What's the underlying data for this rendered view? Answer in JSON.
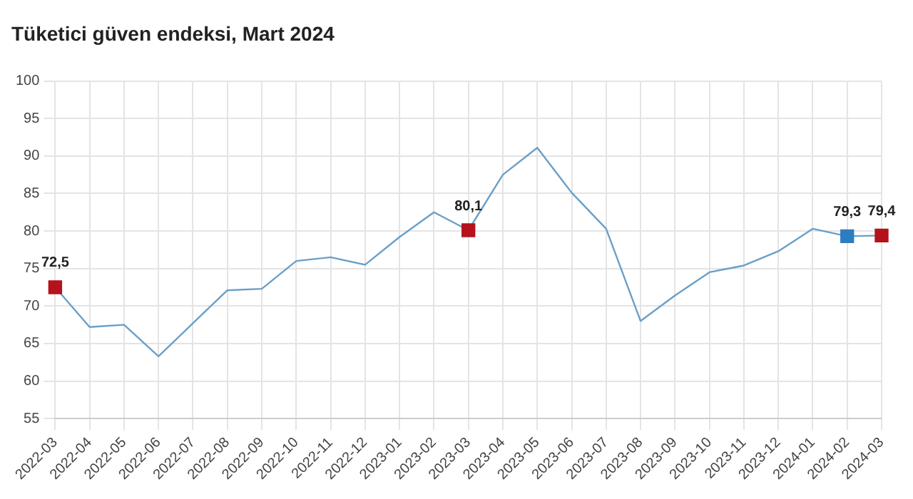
{
  "chart_data": {
    "type": "line",
    "title": "Tüketici güven endeksi, Mart 2024",
    "x": [
      "2022-03",
      "2022-04",
      "2022-05",
      "2022-06",
      "2022-07",
      "2022-08",
      "2022-09",
      "2022-10",
      "2022-11",
      "2022-12",
      "2023-01",
      "2023-02",
      "2023-03",
      "2023-04",
      "2023-05",
      "2023-06",
      "2023-07",
      "2023-08",
      "2023-09",
      "2023-10",
      "2023-11",
      "2023-12",
      "2024-01",
      "2024-02",
      "2024-03"
    ],
    "series": [
      {
        "color": "#6a9fc8",
        "marker": "none",
        "values": [
          72.5,
          67.2,
          67.5,
          63.3,
          67.7,
          72.1,
          72.3,
          76.0,
          76.5,
          75.5,
          79.2,
          82.5,
          80.1,
          87.5,
          91.1,
          85.1,
          80.3,
          68.0,
          71.4,
          74.5,
          75.4,
          77.3,
          80.3,
          79.3,
          79.4
        ]
      },
      {
        "type": "scatter",
        "color": "#b5121b",
        "marker": "square",
        "x": [
          "2022-03",
          "2023-03",
          "2024-03"
        ],
        "values": [
          72.5,
          80.1,
          79.4
        ],
        "value_labels": [
          "72,5",
          "80,1",
          "79,4"
        ]
      },
      {
        "type": "scatter",
        "color": "#2e7dc0",
        "marker": "square",
        "x": [
          "2024-02"
        ],
        "values": [
          79.3
        ],
        "value_labels": [
          "79,3"
        ]
      }
    ],
    "xlim": [
      "2022-03",
      "2024-03"
    ],
    "xticks": [
      "2022-03",
      "2022-04",
      "2022-05",
      "2022-06",
      "2022-07",
      "2022-08",
      "2022-09",
      "2022-10",
      "2022-11",
      "2022-12",
      "2023-01",
      "2023-02",
      "2023-03",
      "2023-04",
      "2023-05",
      "2023-06",
      "2023-07",
      "2023-08",
      "2023-09",
      "2023-10",
      "2023-11",
      "2023-12",
      "2024-01",
      "2024-02",
      "2024-03"
    ],
    "ylim": [
      55,
      100
    ],
    "yticks": [
      55,
      60,
      65,
      70,
      75,
      80,
      85,
      90,
      95,
      100
    ],
    "grid": true,
    "legend": false
  }
}
